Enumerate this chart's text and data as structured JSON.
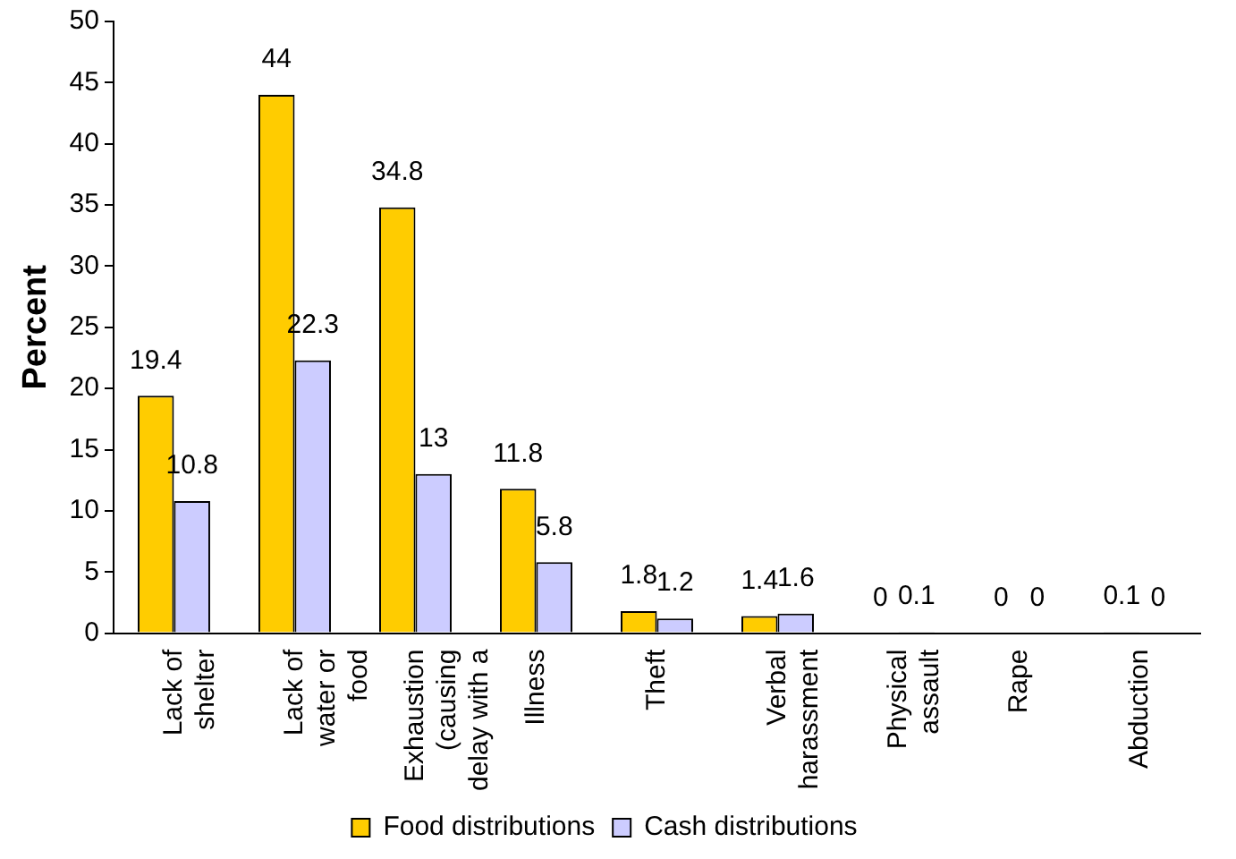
{
  "chart_data": {
    "type": "bar",
    "ylabel": "Percent",
    "categories": [
      "Lack of\nshelter",
      "Lack of\nwater or\nfood",
      "Exhaustion\n(causing\ndelay with a",
      "Illness",
      "Theft",
      "Verbal\nharassment",
      "Physical\nassault",
      "Rape",
      "Abduction"
    ],
    "series": [
      {
        "name": "Food distributions",
        "color": "#ffcc00",
        "values": [
          19.4,
          44,
          34.8,
          11.8,
          1.8,
          1.4,
          0,
          0,
          0.1
        ]
      },
      {
        "name": "Cash distributions",
        "color": "#ccccff",
        "values": [
          10.8,
          22.3,
          13,
          5.8,
          1.2,
          1.6,
          0.1,
          0,
          0
        ]
      }
    ],
    "ylim": [
      0,
      50
    ],
    "yticks": [
      0,
      5,
      10,
      15,
      20,
      25,
      30,
      35,
      40,
      45,
      50
    ],
    "grid": false,
    "legend": "bottom",
    "data_labels": true
  }
}
